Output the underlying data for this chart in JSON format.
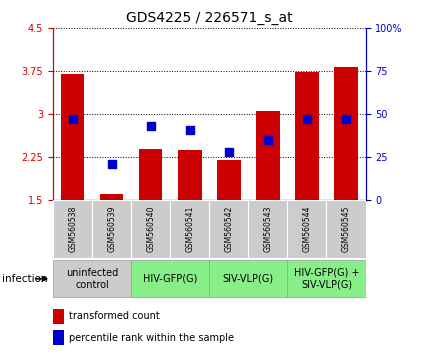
{
  "title": "GDS4225 / 226571_s_at",
  "samples": [
    "GSM560538",
    "GSM560539",
    "GSM560540",
    "GSM560541",
    "GSM560542",
    "GSM560543",
    "GSM560544",
    "GSM560545"
  ],
  "transformed_count": [
    3.7,
    1.6,
    2.4,
    2.38,
    2.2,
    3.05,
    3.74,
    3.82
  ],
  "percentile_rank": [
    47,
    21,
    43,
    41,
    28,
    35,
    47,
    47
  ],
  "ylim_left": [
    1.5,
    4.5
  ],
  "ylim_right": [
    0,
    100
  ],
  "yticks_left": [
    1.5,
    2.25,
    3.0,
    3.75,
    4.5
  ],
  "yticks_right": [
    0,
    25,
    50,
    75,
    100
  ],
  "left_tick_labels": [
    "1.5",
    "2.25",
    "3",
    "3.75",
    "4.5"
  ],
  "right_tick_labels": [
    "0",
    "25",
    "50",
    "75",
    "100%"
  ],
  "bar_color": "#cc0000",
  "dot_color": "#0000cc",
  "bar_width": 0.6,
  "dot_size": 40,
  "groups": [
    {
      "label": "uninfected\ncontrol",
      "start": 0,
      "end": 2,
      "color": "#cccccc"
    },
    {
      "label": "HIV-GFP(G)",
      "start": 2,
      "end": 4,
      "color": "#88ee88"
    },
    {
      "label": "SIV-VLP(G)",
      "start": 4,
      "end": 6,
      "color": "#88ee88"
    },
    {
      "label": "HIV-GFP(G) +\nSIV-VLP(G)",
      "start": 6,
      "end": 8,
      "color": "#88ee88"
    }
  ],
  "sample_bg_color": "#cccccc",
  "xlabel_infection": "infection",
  "legend_red_label": "transformed count",
  "legend_blue_label": "percentile rank within the sample",
  "tick_fontsize": 7,
  "title_fontsize": 10,
  "sample_fontsize": 5.5,
  "group_label_fontsize": 7,
  "legend_fontsize": 7,
  "left_axis_color": "#cc0000",
  "right_axis_color": "#0000cc"
}
